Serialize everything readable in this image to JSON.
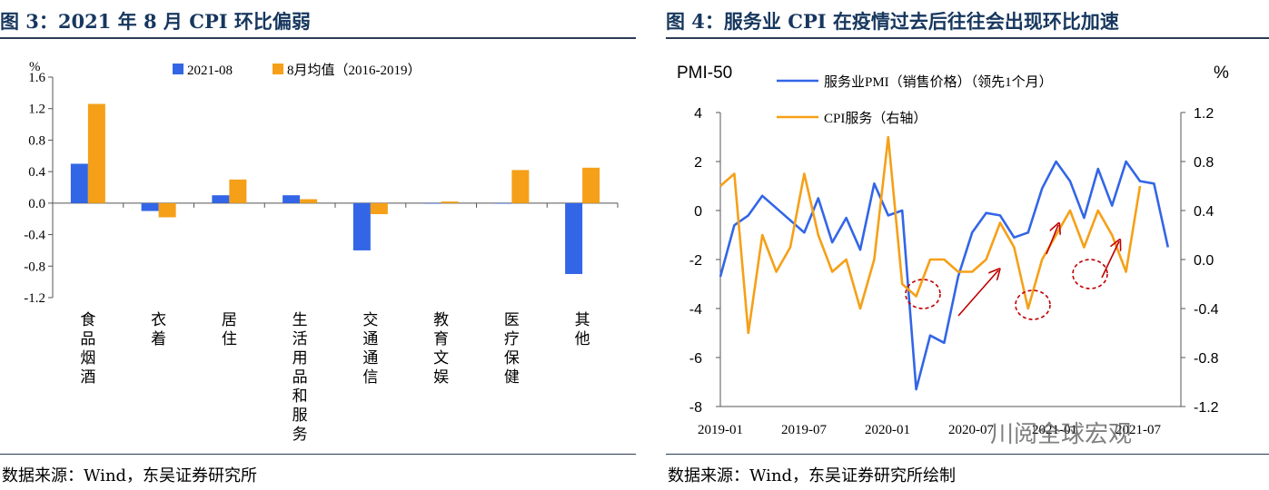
{
  "left": {
    "title": "图 3：2021 年 8 月 CPI 环比偏弱",
    "source": "数据来源：Wind，东吴证券研究所",
    "unit": "%"
  },
  "right": {
    "title": "图 4：服务业 CPI 在疫情过去后往往会出现环比加速",
    "source": "数据来源：Wind，东吴证券研究所绘制",
    "left_axis_label": "PMI-50",
    "right_axis_label": "%"
  },
  "watermark": "川阅全球宏观",
  "colors": {
    "blue": "#3366e6",
    "orange": "#f5a018",
    "title": "#17375e",
    "arrow": "#c00000"
  },
  "chart_data": [
    {
      "type": "bar",
      "categories": [
        "食品烟酒",
        "衣着",
        "居住",
        "生活用品和服务",
        "交通通信",
        "教育文娱",
        "医疗保健",
        "其他"
      ],
      "series": [
        {
          "name": "2021-08",
          "values": [
            0.5,
            -0.1,
            0.1,
            0.1,
            -0.6,
            0.0,
            0.0,
            -0.9
          ]
        },
        {
          "name": "8月均值（2016-2019）",
          "values": [
            1.26,
            -0.18,
            0.3,
            0.05,
            -0.14,
            0.02,
            0.42,
            0.45
          ]
        }
      ],
      "ylim": [
        -1.2,
        1.6
      ],
      "yticks": [
        "1.6",
        "1.2",
        "0.8",
        "0.4",
        "0.0",
        "-0.4",
        "-0.8",
        "-1.2"
      ],
      "legend": "top"
    },
    {
      "type": "line",
      "x_labels": [
        "2019-01",
        "2019-07",
        "2020-01",
        "2020-07",
        "2021-01",
        "2021-07"
      ],
      "series": [
        {
          "name": "服务业PMI（销售价格）（领先1个月）",
          "axis": "left",
          "values": [
            -2.7,
            -0.6,
            -0.2,
            0.6,
            0.1,
            -0.4,
            -0.9,
            0.5,
            -1.3,
            -0.3,
            -1.6,
            1.1,
            -0.2,
            0.0,
            -7.3,
            -5.1,
            -5.4,
            -2.7,
            -0.9,
            -0.1,
            -0.2,
            -1.1,
            -0.9,
            0.9,
            2.0,
            1.2,
            -0.3,
            1.7,
            0.2,
            2.0,
            1.2,
            1.1,
            -1.5
          ]
        },
        {
          "name": "CPI服务（右轴）",
          "axis": "right",
          "values": [
            0.6,
            0.7,
            -0.6,
            0.2,
            -0.1,
            0.1,
            0.7,
            0.2,
            -0.1,
            0.0,
            -0.4,
            0.0,
            1.0,
            -0.2,
            -0.3,
            0.0,
            0.0,
            -0.1,
            -0.1,
            0.0,
            0.3,
            0.1,
            -0.4,
            0.0,
            0.2,
            0.4,
            0.1,
            0.4,
            0.2,
            -0.1,
            0.6
          ]
        }
      ],
      "ylim_left": [
        -8,
        4
      ],
      "ylim_right": [
        -1.2,
        1.2
      ],
      "yticks_left": [
        "4",
        "2",
        "0",
        "-2",
        "-4",
        "-6",
        "-8"
      ],
      "yticks_right": [
        "1.2",
        "0.8",
        "0.4",
        "0.0",
        "-0.4",
        "-0.8",
        "-1.2"
      ],
      "legend": "top"
    }
  ]
}
